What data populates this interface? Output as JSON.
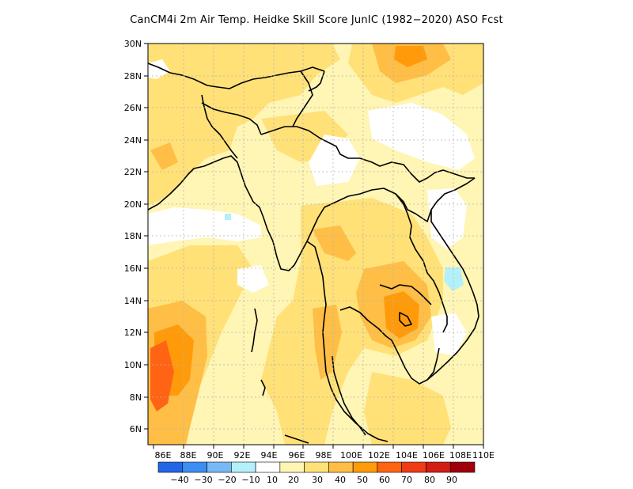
{
  "title": "CanCM4i  2m Air Temp. Heidke Skill Score JunIC (1982−2020) ASO Fcst",
  "lat_ticks": [
    "30N",
    "28N",
    "26N",
    "24N",
    "22N",
    "20N",
    "18N",
    "16N",
    "14N",
    "12N",
    "10N",
    "8N",
    "6N"
  ],
  "lon_ticks": [
    "86E",
    "88E",
    "90E",
    "92E",
    "94E",
    "96E",
    "98E",
    "100E",
    "102E",
    "104E",
    "106E",
    "108E",
    "110E"
  ],
  "colorbar": {
    "labels": [
      "−40",
      "−30",
      "−20",
      "−10",
      "10",
      "20",
      "30",
      "40",
      "50",
      "60",
      "70",
      "80",
      "90"
    ],
    "colors": [
      "#2266e6",
      "#3c8ef0",
      "#78b8f5",
      "#b4f0fa",
      "#ffffff",
      "#fff5b4",
      "#ffe178",
      "#ffbe46",
      "#ff9b0a",
      "#ff6414",
      "#f03c14",
      "#d21e14",
      "#a0000a"
    ]
  },
  "palette": {
    "level10": "#fff5b4",
    "level20": "#ffe178",
    "level30": "#ffbe46",
    "level40": "#ff9b0a",
    "level50": "#ff6414",
    "neg10": "#b4f0fa",
    "grid": "#b4b4b4",
    "coast": "#000000"
  }
}
